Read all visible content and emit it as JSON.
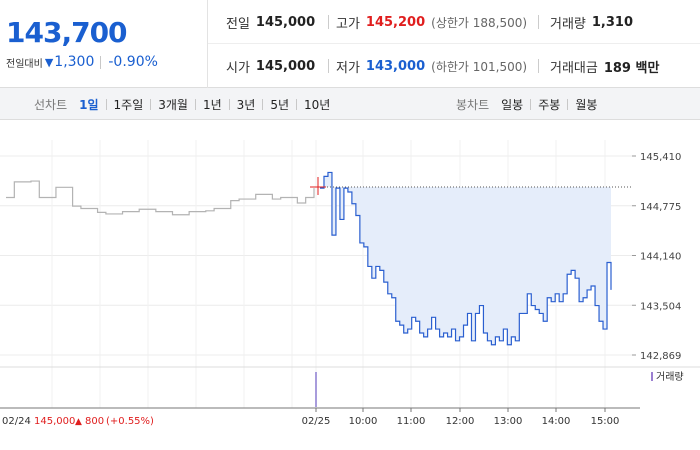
{
  "summary": {
    "price": "143,700",
    "change_label": "전일대비",
    "change_icon": "down-triangle-icon",
    "change_value": "1,300",
    "change_pct": "-0.90%",
    "colors": {
      "up": "#e01e1e",
      "down": "#1a5fd0"
    }
  },
  "info": {
    "prev_close": {
      "label": "전일",
      "value": "145,000"
    },
    "high": {
      "label": "고가",
      "value": "145,200",
      "limit": "(상한가 188,500)"
    },
    "volume": {
      "label": "거래량",
      "value": "1,310"
    },
    "open": {
      "label": "시가",
      "value": "145,000"
    },
    "low": {
      "label": "저가",
      "value": "143,000",
      "limit": "(하한가 101,500)"
    },
    "trade_amount": {
      "label": "거래대금",
      "value": "189 백만"
    }
  },
  "tabs": {
    "line_title": "선차트",
    "line": [
      "1일",
      "1주일",
      "3개월",
      "1년",
      "3년",
      "5년",
      "10년"
    ],
    "line_active": 0,
    "candle_title": "봉차트",
    "candle": [
      "일봉",
      "주봉",
      "월봉"
    ]
  },
  "chart_data": {
    "type": "line",
    "ylim": [
      142869,
      145410
    ],
    "y_ticks": [
      "145,410",
      "144,775",
      "144,140",
      "143,504",
      "142,869"
    ],
    "x_ticks": [
      "02/25",
      "10:00",
      "11:00",
      "12:00",
      "13:00",
      "14:00",
      "15:00"
    ],
    "reference_line": 145000,
    "volume_legend": "거래량",
    "prev_day_label": "02/24",
    "prev_day_price": "145,000",
    "prev_day_change": "800",
    "prev_day_pct": "(+0.55%)",
    "prev_day_series": [
      144880,
      145080,
      145080,
      145090,
      144880,
      144880,
      145010,
      145010,
      144770,
      144740,
      144740,
      144690,
      144670,
      144670,
      144700,
      144700,
      144730,
      144730,
      144700,
      144700,
      144660,
      144660,
      144700,
      144700,
      144710,
      144740,
      144740,
      144840,
      144860,
      144860,
      144920,
      144920,
      144860,
      144880,
      144880,
      144810,
      144880,
      145000
    ],
    "today_series": [
      145000,
      145150,
      145200,
      144400,
      145000,
      144600,
      145000,
      144950,
      144800,
      144650,
      144300,
      144250,
      144000,
      143850,
      144000,
      143950,
      143800,
      143650,
      143600,
      143300,
      143250,
      143150,
      143200,
      143350,
      143300,
      143150,
      143100,
      143200,
      143350,
      143200,
      143100,
      143150,
      143100,
      143200,
      143050,
      143100,
      143250,
      143400,
      143050,
      143400,
      143500,
      143150,
      143050,
      143000,
      143100,
      143050,
      143200,
      143000,
      143100,
      143050,
      143400,
      143400,
      143650,
      143500,
      143450,
      143400,
      143300,
      143600,
      143550,
      143650,
      143550,
      143650,
      143900,
      143950,
      143850,
      143550,
      143600,
      143700,
      143750,
      143500,
      143300,
      143200,
      144050,
      143700
    ]
  }
}
